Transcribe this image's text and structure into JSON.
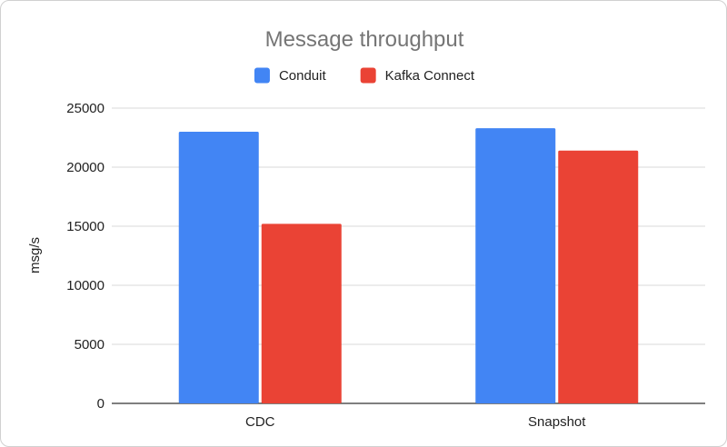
{
  "chart_data": {
    "type": "bar",
    "title": "Message throughput",
    "xlabel": "",
    "ylabel": "msg/s",
    "categories": [
      "CDC",
      "Snapshot"
    ],
    "series": [
      {
        "name": "Conduit",
        "color": "#4285F4",
        "values": [
          23000,
          23300
        ]
      },
      {
        "name": "Kafka Connect",
        "color": "#EA4335",
        "values": [
          15200,
          21400
        ]
      }
    ],
    "ylim": [
      0,
      25000
    ],
    "yticks": [
      "0",
      "5000",
      "10000",
      "15000",
      "20000",
      "25000"
    ],
    "grid": true,
    "legend_position": "top-center"
  }
}
